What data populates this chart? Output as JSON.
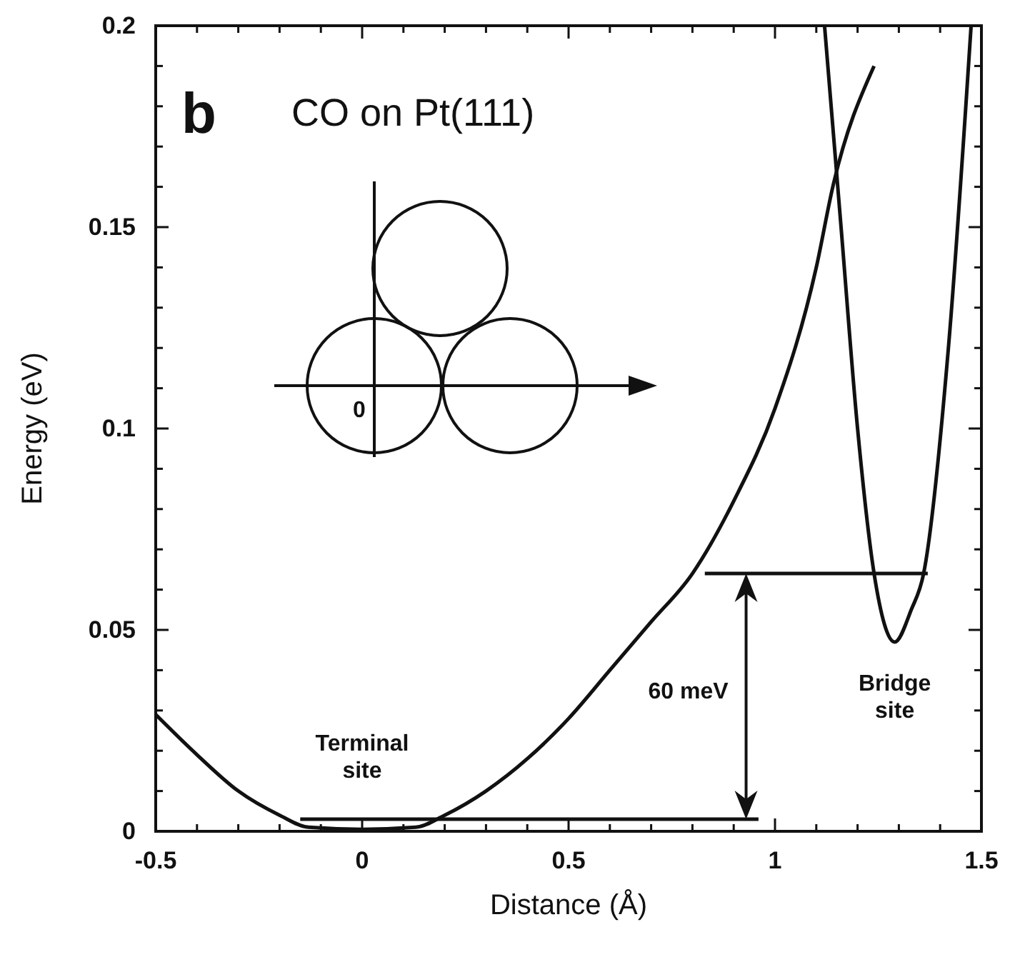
{
  "chart_data": {
    "type": "line",
    "title": "CO on Pt(111)",
    "xlabel": "Distance (Å)",
    "ylabel": "Energy (eV)",
    "xlim": [
      -0.5,
      1.5
    ],
    "ylim": [
      0,
      0.2
    ],
    "xticks": [
      -0.5,
      {
        "value": -0.4,
        "label": null
      },
      {
        "value": -0.3,
        "label": null
      },
      {
        "value": -0.2,
        "label": null
      },
      {
        "value": -0.1,
        "label": null
      },
      0,
      {
        "value": 0.1,
        "label": null
      },
      {
        "value": 0.2,
        "label": null
      },
      {
        "value": 0.3,
        "label": null
      },
      {
        "value": 0.4,
        "label": null
      },
      0.5,
      {
        "value": 0.6,
        "label": null
      },
      {
        "value": 0.7,
        "label": null
      },
      {
        "value": 0.8,
        "label": null
      },
      {
        "value": 0.9,
        "label": null
      },
      1,
      {
        "value": 1.1,
        "label": null
      },
      {
        "value": 1.2,
        "label": null
      },
      {
        "value": 1.3,
        "label": null
      },
      {
        "value": 1.4,
        "label": null
      },
      1.5
    ],
    "yticks": [
      0,
      {
        "value": 0.01,
        "label": null
      },
      {
        "value": 0.02,
        "label": null
      },
      {
        "value": 0.03,
        "label": null
      },
      {
        "value": 0.04,
        "label": null
      },
      0.05,
      {
        "value": 0.06,
        "label": null
      },
      {
        "value": 0.07,
        "label": null
      },
      {
        "value": 0.08,
        "label": null
      },
      {
        "value": 0.09,
        "label": null
      },
      0.1,
      {
        "value": 0.11,
        "label": null
      },
      {
        "value": 0.12,
        "label": null
      },
      {
        "value": 0.13,
        "label": null
      },
      {
        "value": 0.14,
        "label": null
      },
      0.15,
      {
        "value": 0.16,
        "label": null
      },
      {
        "value": 0.17,
        "label": null
      },
      {
        "value": 0.18,
        "label": null
      },
      {
        "value": 0.19,
        "label": null
      },
      0.2
    ],
    "series": [
      {
        "color": "#111111",
        "x": [
          -0.5,
          -0.4,
          -0.3,
          -0.2,
          -0.13,
          0,
          0.13,
          0.2,
          0.3,
          0.4,
          0.5,
          0.6,
          0.7,
          0.8,
          0.9,
          1.0,
          1.1,
          1.14,
          1.24
        ],
        "values": [
          0.029,
          0.019,
          0.01,
          0.004,
          0.001,
          0.0005,
          0.001,
          0.004,
          0.01,
          0.018,
          0.028,
          0.04,
          0.052,
          0.064,
          0.082,
          0.105,
          0.14,
          0.16,
          0.19
        ]
      },
      {
        "color": "#111111",
        "x": [
          1.12,
          1.16,
          1.2,
          1.24,
          1.29,
          1.33,
          1.36,
          1.42,
          1.475
        ],
        "values": [
          0.2,
          0.15,
          0.1,
          0.064,
          0.047,
          0.055,
          0.064,
          0.12,
          0.2
        ]
      },
      {
        "color": "#111111",
        "x": [
          0.83,
          1.37
        ],
        "values": [
          0.064,
          0.064
        ]
      },
      {
        "color": "#111111",
        "x": [
          -0.15,
          0.96
        ],
        "values": [
          0.003,
          0.003
        ]
      }
    ],
    "annotations": [
      "b",
      "0",
      "Terminal\nsite",
      "60 meV",
      "Bridge\nsite"
    ],
    "grid": false,
    "marker": "none",
    "line_style": "solid"
  }
}
